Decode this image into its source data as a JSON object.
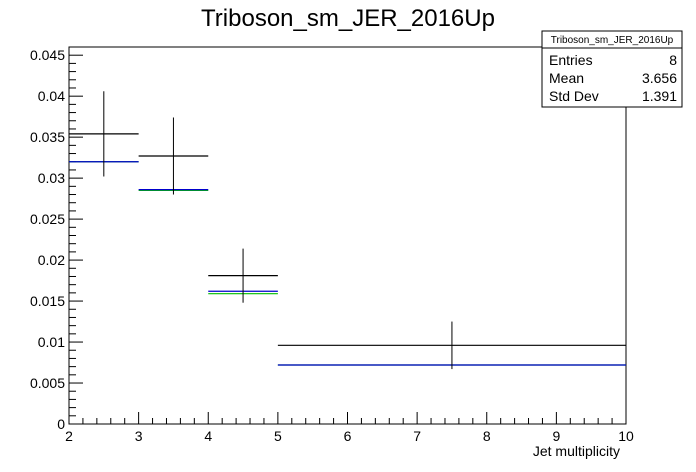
{
  "chart_data": {
    "type": "bar",
    "title": "Triboson_sm_JER_2016Up",
    "xlabel": "Jet multiplicity",
    "ylabel": "",
    "xlim": [
      2,
      10
    ],
    "ylim": [
      0,
      0.046
    ],
    "x_ticks": [
      "2",
      "3",
      "4",
      "5",
      "6",
      "7",
      "8",
      "9",
      "10"
    ],
    "y_ticks": [
      "0",
      "0.005",
      "0.01",
      "0.015",
      "0.02",
      "0.025",
      "0.03",
      "0.035",
      "0.04",
      "0.045"
    ],
    "x_tick_values": [
      2,
      3,
      4,
      5,
      6,
      7,
      8,
      9,
      10
    ],
    "y_tick_values": [
      0,
      0.005,
      0.01,
      0.015,
      0.02,
      0.025,
      0.03,
      0.035,
      0.04,
      0.045
    ],
    "bins": [
      [
        2,
        3
      ],
      [
        3,
        4
      ],
      [
        4,
        5
      ],
      [
        5,
        10
      ]
    ],
    "series": [
      {
        "style": "errorbars",
        "color": "#000000",
        "values": [
          0.0354,
          0.0327,
          0.0181,
          0.0096
        ],
        "errors": [
          0.0052,
          0.0047,
          0.0033,
          0.0029
        ]
      },
      {
        "style": "step",
        "color": "#0000cc",
        "values": [
          0.032,
          0.0286,
          0.0162,
          0.0072
        ]
      },
      {
        "style": "step",
        "color": "#00bb00",
        "values": [
          0.032,
          0.0285,
          0.0159,
          0.0072
        ]
      }
    ],
    "stats_box": {
      "title": "Triboson_sm_JER_2016Up",
      "rows": [
        {
          "label": "Entries",
          "value": "8"
        },
        {
          "label": "Mean",
          "value": "3.656"
        },
        {
          "label": "Std Dev",
          "value": "1.391"
        }
      ]
    }
  }
}
